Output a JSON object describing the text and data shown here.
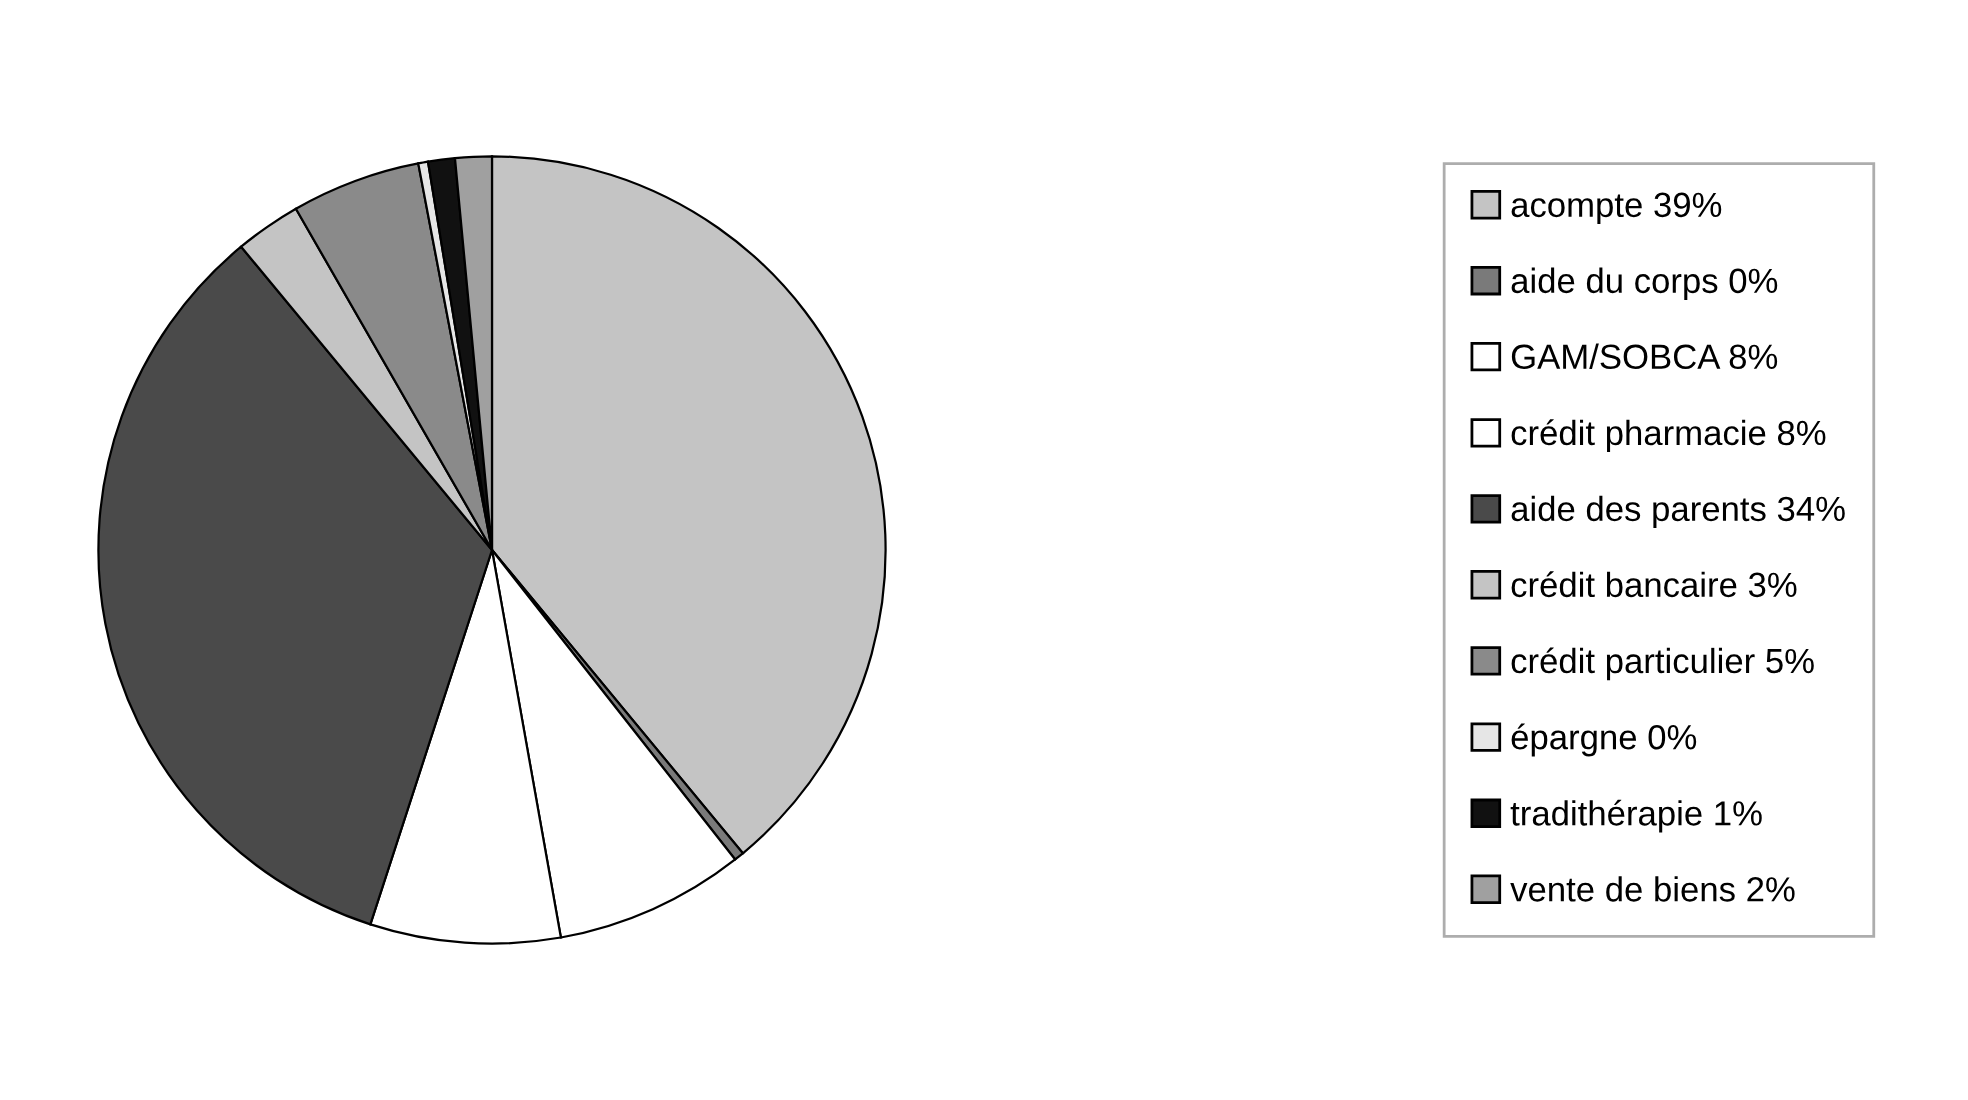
{
  "chart_data": {
    "type": "pie",
    "categories": [
      "acompte 39%",
      "aide du corps 0%",
      "GAM/SOBCA 8%",
      "crédit pharmacie 8%",
      "aide des parents 34%",
      "crédit bancaire 3%",
      "crédit particulier 5%",
      "épargne 0%",
      "tradithérapie 1%",
      "vente de biens 2%"
    ],
    "values": [
      39,
      0.4,
      7.8,
      7.8,
      34,
      2.7,
      5.3,
      0.4,
      1.1,
      1.5
    ],
    "colors": [
      "#c4c4c4",
      "#7a7a7a",
      "#ffffff",
      "#ffffff",
      "#4a4a4a",
      "#c4c4c4",
      "#8a8a8a",
      "#e6e6e6",
      "#111111",
      "#a0a0a0"
    ],
    "legend": "right"
  }
}
